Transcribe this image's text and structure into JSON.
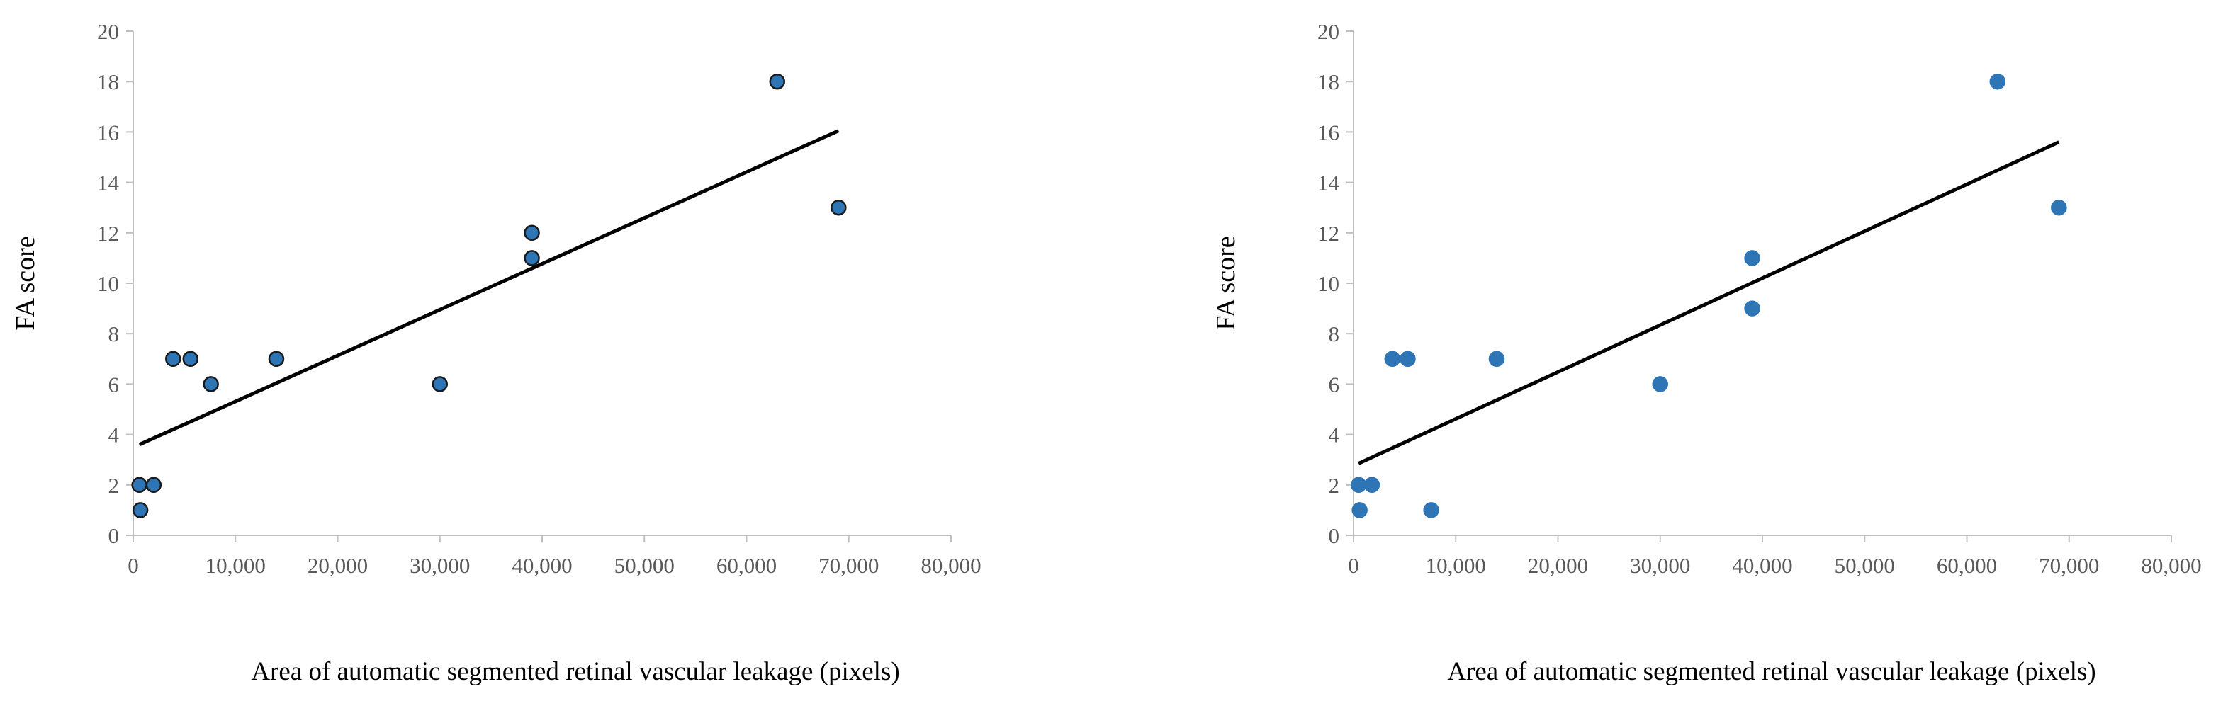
{
  "chart_data": [
    {
      "type": "scatter",
      "title": "",
      "xlabel": "Area of automatic segmented retinal vascular leakage (pixels)",
      "ylabel": "FA score",
      "xlim": [
        0,
        80000
      ],
      "ylim": [
        0,
        20
      ],
      "xticks": [
        0,
        10000,
        20000,
        30000,
        40000,
        50000,
        60000,
        70000,
        80000
      ],
      "xtick_labels": [
        "0",
        "10,000",
        "20,000",
        "30,000",
        "40,000",
        "50,000",
        "60,000",
        "70,000",
        "80,000"
      ],
      "yticks": [
        0,
        2,
        4,
        6,
        8,
        10,
        12,
        14,
        16,
        18,
        20
      ],
      "ytick_labels": [
        "0",
        "2",
        "4",
        "6",
        "8",
        "10",
        "12",
        "14",
        "16",
        "18",
        "20"
      ],
      "grid": false,
      "marker_color": "#2e75b6",
      "marker_edge": "#1a1a1a",
      "series": [
        {
          "name": "data",
          "x": [
            600,
            700,
            2000,
            3900,
            5600,
            7600,
            14000,
            30000,
            39000,
            39000,
            63000,
            69000
          ],
          "y": [
            2,
            1,
            2,
            7,
            7,
            6,
            7,
            6,
            12,
            11,
            18,
            13
          ]
        }
      ],
      "trendline": {
        "x": [
          600,
          69000
        ],
        "y": [
          3.6,
          16.05
        ]
      }
    },
    {
      "type": "scatter",
      "title": "",
      "xlabel": "Area of automatic segmented retinal vascular leakage (pixels)",
      "ylabel": "FA score",
      "xlim": [
        0,
        80000
      ],
      "ylim": [
        0,
        20
      ],
      "xticks": [
        0,
        10000,
        20000,
        30000,
        40000,
        50000,
        60000,
        70000,
        80000
      ],
      "xtick_labels": [
        "0",
        "10,000",
        "20,000",
        "30,000",
        "40,000",
        "50,000",
        "60,000",
        "70,000",
        "80,000"
      ],
      "yticks": [
        0,
        2,
        4,
        6,
        8,
        10,
        12,
        14,
        16,
        18,
        20
      ],
      "ytick_labels": [
        "0",
        "2",
        "4",
        "6",
        "8",
        "10",
        "12",
        "14",
        "16",
        "18",
        "20"
      ],
      "grid": false,
      "marker_color": "#2e75b6",
      "marker_edge": "#2e75b6",
      "series": [
        {
          "name": "data",
          "x": [
            500,
            600,
            1800,
            3800,
            5300,
            7600,
            14000,
            30000,
            39000,
            39000,
            63000,
            69000
          ],
          "y": [
            2,
            1,
            2,
            7,
            7,
            1,
            7,
            6,
            11,
            9,
            18,
            13
          ]
        }
      ],
      "trendline": {
        "x": [
          500,
          69000
        ],
        "y": [
          2.85,
          15.6
        ]
      }
    }
  ]
}
